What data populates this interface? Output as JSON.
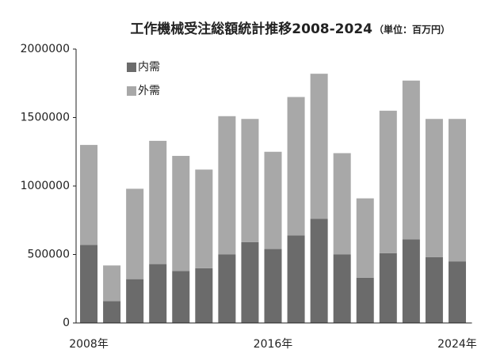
{
  "chart_data": {
    "type": "stacked_bar",
    "title": "工作機械受注総額統計推移2008-2024",
    "subtitle": "（単位：百万円）",
    "categories": [
      "2008年",
      null,
      null,
      null,
      null,
      null,
      null,
      null,
      "2016年",
      null,
      null,
      null,
      null,
      null,
      null,
      null,
      "2024年"
    ],
    "series": [
      {
        "name": "内需",
        "color": "#6b6b6b",
        "values": [
          570000,
          160000,
          320000,
          430000,
          380000,
          400000,
          500000,
          590000,
          540000,
          640000,
          760000,
          500000,
          330000,
          510000,
          610000,
          480000,
          450000
        ]
      },
      {
        "name": "外需",
        "color": "#a8a8a8",
        "values": [
          730000,
          260000,
          660000,
          900000,
          840000,
          720000,
          1010000,
          900000,
          710000,
          1010000,
          1060000,
          740000,
          580000,
          1040000,
          1160000,
          1010000,
          1040000
        ]
      }
    ],
    "ylim": [
      0,
      2000000
    ],
    "yticks": [
      0,
      500000,
      1000000,
      1500000,
      2000000
    ],
    "legend": "top-left"
  }
}
